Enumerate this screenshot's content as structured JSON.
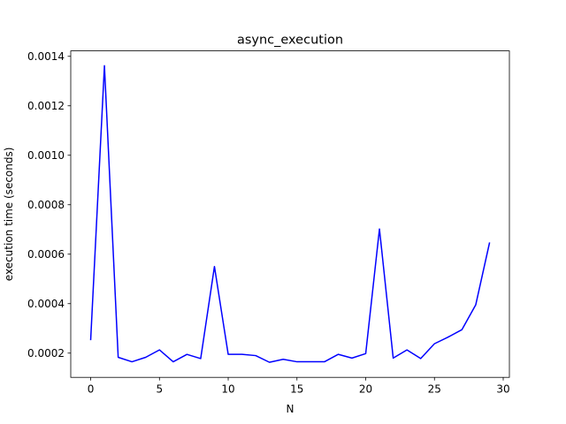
{
  "chart_data": {
    "type": "line",
    "title": "async_execution",
    "xlabel": "N",
    "ylabel": "execution time (seconds)",
    "xlim": [
      -1.45,
      30.45
    ],
    "ylim": [
      0.000102,
      0.001422
    ],
    "xticks": [
      0,
      5,
      10,
      15,
      20,
      25,
      30
    ],
    "xtick_labels": [
      "0",
      "5",
      "10",
      "15",
      "20",
      "25",
      "30"
    ],
    "yticks": [
      0.0002,
      0.0004,
      0.0006,
      0.0008,
      0.001,
      0.0012,
      0.0014
    ],
    "ytick_labels": [
      "0.0002",
      "0.0004",
      "0.0006",
      "0.0008",
      "0.0010",
      "0.0012",
      "0.0014"
    ],
    "grid": false,
    "series": [
      {
        "color": "#0000ff",
        "x": [
          0,
          1,
          2,
          3,
          4,
          5,
          6,
          7,
          8,
          9,
          10,
          11,
          12,
          13,
          14,
          15,
          16,
          17,
          18,
          19,
          20,
          21,
          22,
          23,
          24,
          25,
          26,
          27,
          28,
          29
        ],
        "values": [
          0.000255,
          0.001362,
          0.000183,
          0.000165,
          0.000183,
          0.000213,
          0.000165,
          0.000195,
          0.000178,
          0.00055,
          0.000195,
          0.000195,
          0.00019,
          0.000163,
          0.000175,
          0.000165,
          0.000165,
          0.000165,
          0.000195,
          0.00018,
          0.000198,
          0.000702,
          0.00018,
          0.000213,
          0.000178,
          0.000238,
          0.000265,
          0.000295,
          0.000395,
          0.000645
        ]
      }
    ]
  }
}
